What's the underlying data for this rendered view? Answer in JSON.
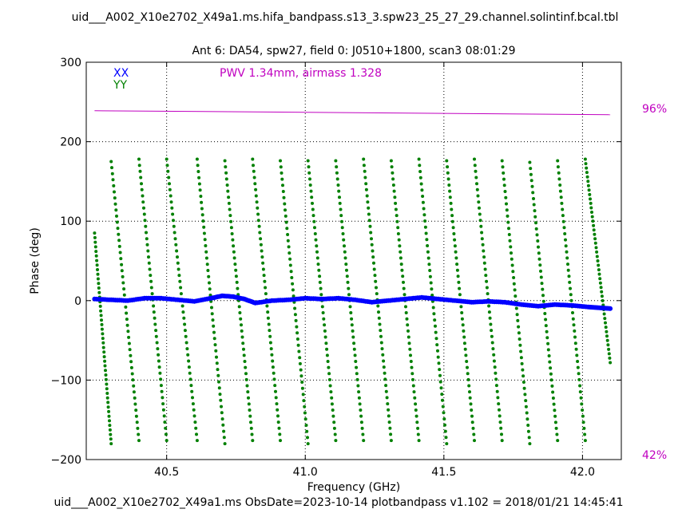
{
  "header": {
    "file_title": "uid___A002_X10e2702_X49a1.ms.hifa_bandpass.s13_3.spw23_25_27_29.channel.solintinf.bcal.tbl",
    "plot_title": "Ant 6: DA54,  spw27,  field 0: J0510+1800,  scan3  08:01:29"
  },
  "footer": {
    "text": "uid___A002_X10e2702_X49a1.ms  ObsDate=2023-10-14   plotbandpass v1.102 = 2018/01/21 14:45:41"
  },
  "chart_data": {
    "type": "scatter",
    "xlabel": "Frequency (GHz)",
    "ylabel": "Phase (deg)",
    "xlim": [
      40.21,
      42.14
    ],
    "ylim": [
      -200,
      300
    ],
    "xticks": [
      40.5,
      41.0,
      41.5,
      42.0
    ],
    "xtick_labels": [
      "40.5",
      "41.0",
      "41.5",
      "42.0"
    ],
    "yticks": [
      -200,
      -100,
      0,
      100,
      200,
      300
    ],
    "ytick_labels": [
      "−200",
      "−100",
      "0",
      "100",
      "200",
      "300"
    ],
    "grid": true,
    "legend_position": "top-left",
    "annotation": "PWV 1.34mm, airmass 1.328",
    "right_axis": {
      "top_label": "96%",
      "bottom_label": "42%"
    },
    "colors": {
      "XX": "#0000ff",
      "YY": "#008000",
      "atmosphere": "#c000c0"
    },
    "x_start": 40.24,
    "x_end": 42.1,
    "series": [
      {
        "name": "XX",
        "kind": "points",
        "x": [
          40.24,
          40.3,
          40.36,
          40.42,
          40.48,
          40.54,
          40.6,
          40.66,
          40.7,
          40.74,
          40.78,
          40.82,
          40.88,
          40.94,
          41.0,
          41.06,
          41.12,
          41.18,
          41.24,
          41.3,
          41.36,
          41.42,
          41.48,
          41.54,
          41.6,
          41.66,
          41.72,
          41.78,
          41.84,
          41.9,
          41.96,
          42.02,
          42.06,
          42.1
        ],
        "y": [
          2,
          1,
          0,
          3,
          3,
          1,
          -1,
          3,
          6,
          5,
          2,
          -3,
          0,
          1,
          3,
          2,
          3,
          1,
          -2,
          0,
          2,
          4,
          2,
          0,
          -2,
          -1,
          -2,
          -5,
          -7,
          -5,
          -6,
          -8,
          -9,
          -10
        ]
      },
      {
        "name": "YY",
        "kind": "wraps",
        "segments": [
          {
            "x0": 40.24,
            "y0": 85,
            "x1": 40.3,
            "y1": -180
          },
          {
            "x0": 40.3,
            "y0": 175,
            "x1": 40.4,
            "y1": -176
          },
          {
            "x0": 40.4,
            "y0": 178,
            "x1": 40.5,
            "y1": -176
          },
          {
            "x0": 40.5,
            "y0": 178,
            "x1": 40.61,
            "y1": -176
          },
          {
            "x0": 40.61,
            "y0": 178,
            "x1": 40.71,
            "y1": -180
          },
          {
            "x0": 40.71,
            "y0": 176,
            "x1": 40.81,
            "y1": -176
          },
          {
            "x0": 40.81,
            "y0": 178,
            "x1": 40.91,
            "y1": -176
          },
          {
            "x0": 40.91,
            "y0": 176,
            "x1": 41.01,
            "y1": -180
          },
          {
            "x0": 41.01,
            "y0": 176,
            "x1": 41.11,
            "y1": -176
          },
          {
            "x0": 41.11,
            "y0": 176,
            "x1": 41.21,
            "y1": -176
          },
          {
            "x0": 41.21,
            "y0": 178,
            "x1": 41.31,
            "y1": -176
          },
          {
            "x0": 41.31,
            "y0": 176,
            "x1": 41.41,
            "y1": -176
          },
          {
            "x0": 41.41,
            "y0": 178,
            "x1": 41.51,
            "y1": -180
          },
          {
            "x0": 41.51,
            "y0": 176,
            "x1": 41.61,
            "y1": -176
          },
          {
            "x0": 41.61,
            "y0": 178,
            "x1": 41.71,
            "y1": -176
          },
          {
            "x0": 41.71,
            "y0": 176,
            "x1": 41.81,
            "y1": -180
          },
          {
            "x0": 41.81,
            "y0": 174,
            "x1": 41.91,
            "y1": -176
          },
          {
            "x0": 41.91,
            "y0": 176,
            "x1": 42.01,
            "y1": -176
          },
          {
            "x0": 42.01,
            "y0": 178,
            "x1": 42.1,
            "y1": -78
          }
        ]
      },
      {
        "name": "atmosphere",
        "kind": "line",
        "x": [
          40.24,
          42.1
        ],
        "y": [
          239,
          234
        ]
      }
    ]
  }
}
